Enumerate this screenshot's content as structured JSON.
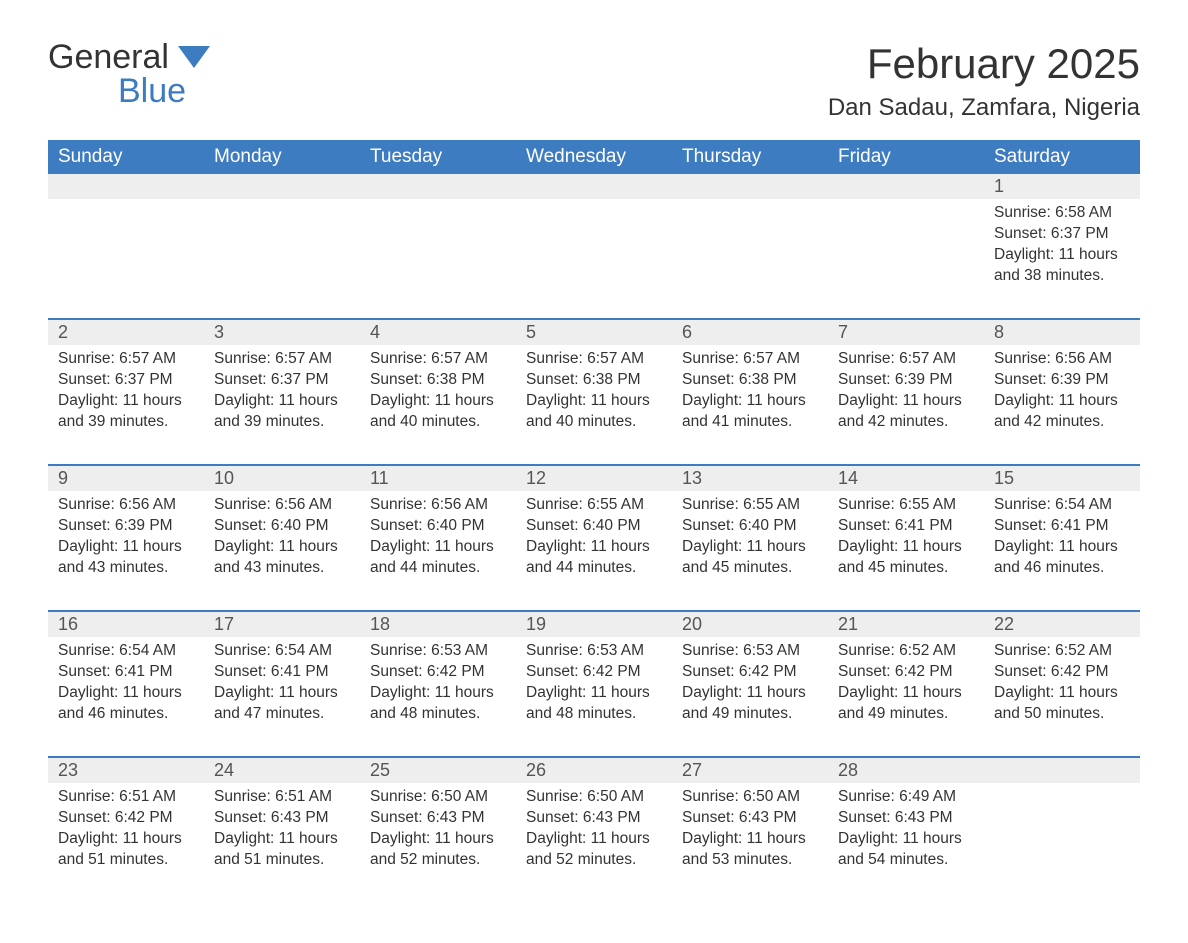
{
  "logo": {
    "line1": "General",
    "line2": "Blue"
  },
  "title": "February 2025",
  "location": "Dan Sadau, Zamfara, Nigeria",
  "columns": [
    "Sunday",
    "Monday",
    "Tuesday",
    "Wednesday",
    "Thursday",
    "Friday",
    "Saturday"
  ],
  "colors": {
    "accent": "#3d7cc0",
    "header_bg": "#3d7cc0",
    "header_text": "#ffffff",
    "daynum_bg": "#eeeeee",
    "text": "#333333",
    "background": "#ffffff"
  },
  "weeks": [
    [
      null,
      null,
      null,
      null,
      null,
      null,
      {
        "day": "1",
        "sunrise": "Sunrise: 6:58 AM",
        "sunset": "Sunset: 6:37 PM",
        "daylight1": "Daylight: 11 hours",
        "daylight2": "and 38 minutes."
      }
    ],
    [
      {
        "day": "2",
        "sunrise": "Sunrise: 6:57 AM",
        "sunset": "Sunset: 6:37 PM",
        "daylight1": "Daylight: 11 hours",
        "daylight2": "and 39 minutes."
      },
      {
        "day": "3",
        "sunrise": "Sunrise: 6:57 AM",
        "sunset": "Sunset: 6:37 PM",
        "daylight1": "Daylight: 11 hours",
        "daylight2": "and 39 minutes."
      },
      {
        "day": "4",
        "sunrise": "Sunrise: 6:57 AM",
        "sunset": "Sunset: 6:38 PM",
        "daylight1": "Daylight: 11 hours",
        "daylight2": "and 40 minutes."
      },
      {
        "day": "5",
        "sunrise": "Sunrise: 6:57 AM",
        "sunset": "Sunset: 6:38 PM",
        "daylight1": "Daylight: 11 hours",
        "daylight2": "and 40 minutes."
      },
      {
        "day": "6",
        "sunrise": "Sunrise: 6:57 AM",
        "sunset": "Sunset: 6:38 PM",
        "daylight1": "Daylight: 11 hours",
        "daylight2": "and 41 minutes."
      },
      {
        "day": "7",
        "sunrise": "Sunrise: 6:57 AM",
        "sunset": "Sunset: 6:39 PM",
        "daylight1": "Daylight: 11 hours",
        "daylight2": "and 42 minutes."
      },
      {
        "day": "8",
        "sunrise": "Sunrise: 6:56 AM",
        "sunset": "Sunset: 6:39 PM",
        "daylight1": "Daylight: 11 hours",
        "daylight2": "and 42 minutes."
      }
    ],
    [
      {
        "day": "9",
        "sunrise": "Sunrise: 6:56 AM",
        "sunset": "Sunset: 6:39 PM",
        "daylight1": "Daylight: 11 hours",
        "daylight2": "and 43 minutes."
      },
      {
        "day": "10",
        "sunrise": "Sunrise: 6:56 AM",
        "sunset": "Sunset: 6:40 PM",
        "daylight1": "Daylight: 11 hours",
        "daylight2": "and 43 minutes."
      },
      {
        "day": "11",
        "sunrise": "Sunrise: 6:56 AM",
        "sunset": "Sunset: 6:40 PM",
        "daylight1": "Daylight: 11 hours",
        "daylight2": "and 44 minutes."
      },
      {
        "day": "12",
        "sunrise": "Sunrise: 6:55 AM",
        "sunset": "Sunset: 6:40 PM",
        "daylight1": "Daylight: 11 hours",
        "daylight2": "and 44 minutes."
      },
      {
        "day": "13",
        "sunrise": "Sunrise: 6:55 AM",
        "sunset": "Sunset: 6:40 PM",
        "daylight1": "Daylight: 11 hours",
        "daylight2": "and 45 minutes."
      },
      {
        "day": "14",
        "sunrise": "Sunrise: 6:55 AM",
        "sunset": "Sunset: 6:41 PM",
        "daylight1": "Daylight: 11 hours",
        "daylight2": "and 45 minutes."
      },
      {
        "day": "15",
        "sunrise": "Sunrise: 6:54 AM",
        "sunset": "Sunset: 6:41 PM",
        "daylight1": "Daylight: 11 hours",
        "daylight2": "and 46 minutes."
      }
    ],
    [
      {
        "day": "16",
        "sunrise": "Sunrise: 6:54 AM",
        "sunset": "Sunset: 6:41 PM",
        "daylight1": "Daylight: 11 hours",
        "daylight2": "and 46 minutes."
      },
      {
        "day": "17",
        "sunrise": "Sunrise: 6:54 AM",
        "sunset": "Sunset: 6:41 PM",
        "daylight1": "Daylight: 11 hours",
        "daylight2": "and 47 minutes."
      },
      {
        "day": "18",
        "sunrise": "Sunrise: 6:53 AM",
        "sunset": "Sunset: 6:42 PM",
        "daylight1": "Daylight: 11 hours",
        "daylight2": "and 48 minutes."
      },
      {
        "day": "19",
        "sunrise": "Sunrise: 6:53 AM",
        "sunset": "Sunset: 6:42 PM",
        "daylight1": "Daylight: 11 hours",
        "daylight2": "and 48 minutes."
      },
      {
        "day": "20",
        "sunrise": "Sunrise: 6:53 AM",
        "sunset": "Sunset: 6:42 PM",
        "daylight1": "Daylight: 11 hours",
        "daylight2": "and 49 minutes."
      },
      {
        "day": "21",
        "sunrise": "Sunrise: 6:52 AM",
        "sunset": "Sunset: 6:42 PM",
        "daylight1": "Daylight: 11 hours",
        "daylight2": "and 49 minutes."
      },
      {
        "day": "22",
        "sunrise": "Sunrise: 6:52 AM",
        "sunset": "Sunset: 6:42 PM",
        "daylight1": "Daylight: 11 hours",
        "daylight2": "and 50 minutes."
      }
    ],
    [
      {
        "day": "23",
        "sunrise": "Sunrise: 6:51 AM",
        "sunset": "Sunset: 6:42 PM",
        "daylight1": "Daylight: 11 hours",
        "daylight2": "and 51 minutes."
      },
      {
        "day": "24",
        "sunrise": "Sunrise: 6:51 AM",
        "sunset": "Sunset: 6:43 PM",
        "daylight1": "Daylight: 11 hours",
        "daylight2": "and 51 minutes."
      },
      {
        "day": "25",
        "sunrise": "Sunrise: 6:50 AM",
        "sunset": "Sunset: 6:43 PM",
        "daylight1": "Daylight: 11 hours",
        "daylight2": "and 52 minutes."
      },
      {
        "day": "26",
        "sunrise": "Sunrise: 6:50 AM",
        "sunset": "Sunset: 6:43 PM",
        "daylight1": "Daylight: 11 hours",
        "daylight2": "and 52 minutes."
      },
      {
        "day": "27",
        "sunrise": "Sunrise: 6:50 AM",
        "sunset": "Sunset: 6:43 PM",
        "daylight1": "Daylight: 11 hours",
        "daylight2": "and 53 minutes."
      },
      {
        "day": "28",
        "sunrise": "Sunrise: 6:49 AM",
        "sunset": "Sunset: 6:43 PM",
        "daylight1": "Daylight: 11 hours",
        "daylight2": "and 54 minutes."
      },
      null
    ]
  ]
}
